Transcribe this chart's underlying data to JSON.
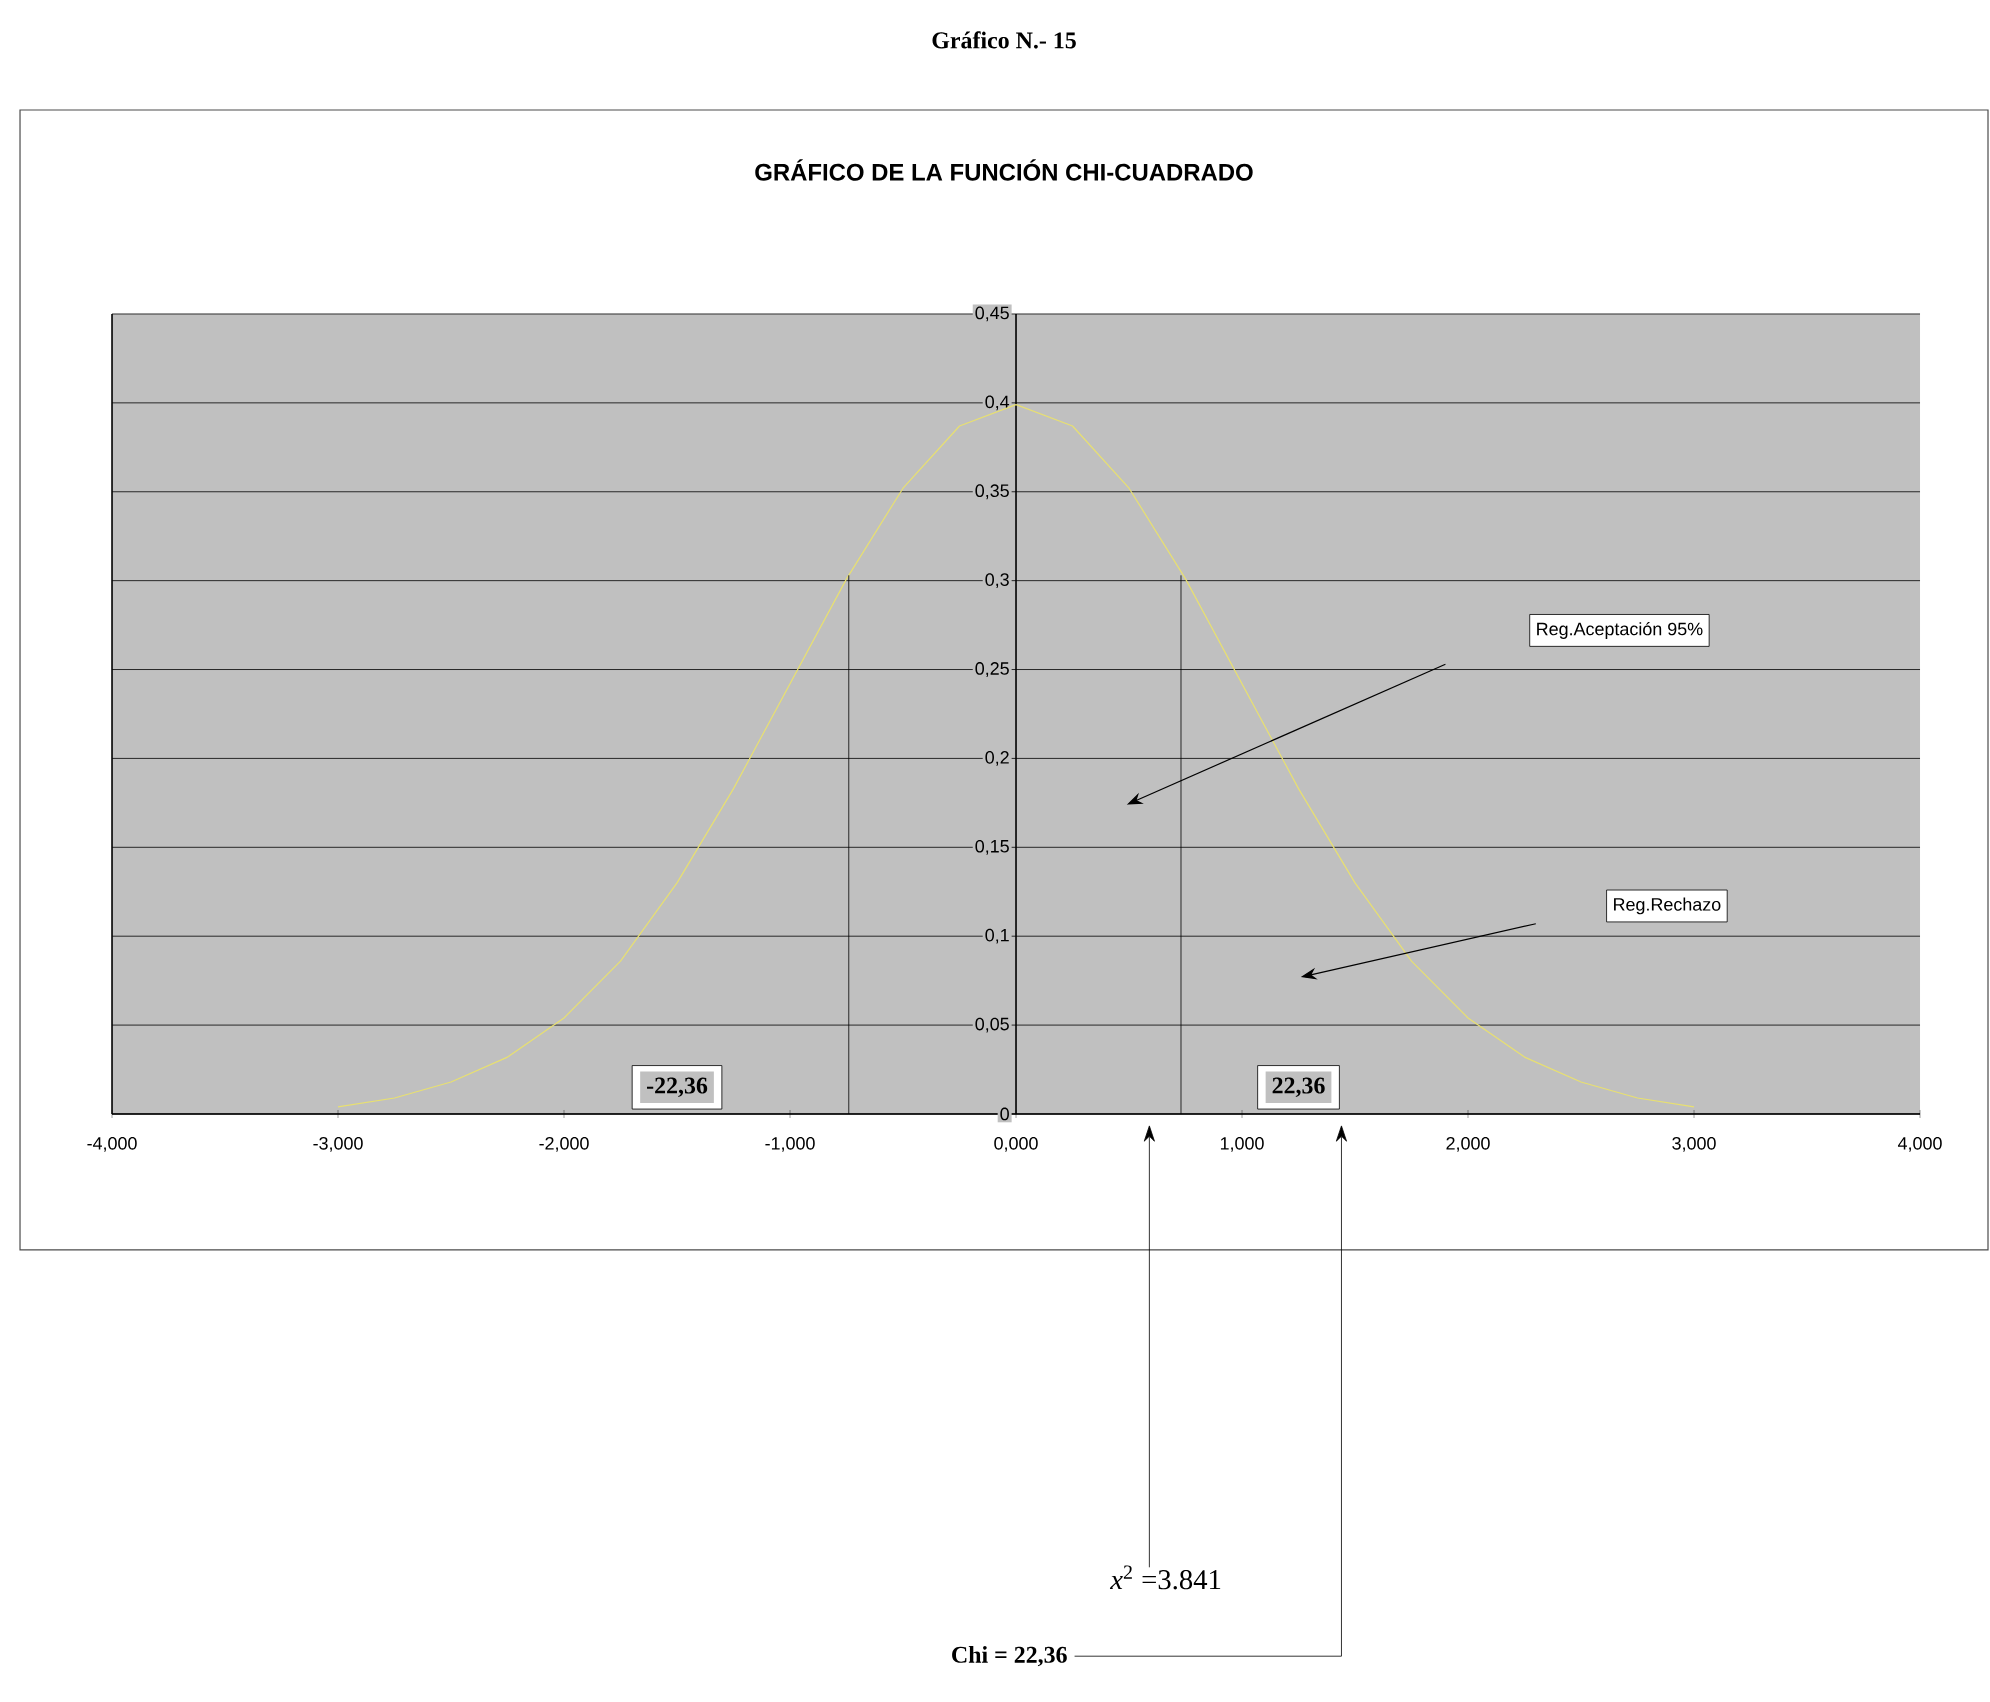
{
  "chart_data": {
    "type": "line",
    "title": "GRÁFICO DE LA FUNCIÓN CHI-CUADRADO",
    "xlim": [
      -4,
      4
    ],
    "ylim": [
      0,
      0.45
    ],
    "xticks": [
      {
        "value": -4,
        "label": "-4,000"
      },
      {
        "value": -3,
        "label": "-3,000"
      },
      {
        "value": -2,
        "label": "-2,000"
      },
      {
        "value": -1,
        "label": "-1,000"
      },
      {
        "value": 0,
        "label": "0,000"
      },
      {
        "value": 1,
        "label": "1,000"
      },
      {
        "value": 2,
        "label": "2,000"
      },
      {
        "value": 3,
        "label": "3,000"
      },
      {
        "value": 4,
        "label": "4,000"
      }
    ],
    "yticks": [
      0,
      {
        "value": 0.05,
        "label": "0,05"
      },
      {
        "value": 0.1,
        "label": "0,1"
      },
      {
        "value": 0.15,
        "label": "0,15"
      },
      {
        "value": 0.2,
        "label": "0,2"
      },
      {
        "value": 0.25,
        "label": "0,25"
      },
      {
        "value": 0.3,
        "label": "0,3"
      },
      {
        "value": 0.35,
        "label": "0,35"
      },
      {
        "value": 0.4,
        "label": "0,4"
      },
      {
        "value": 0.45,
        "label": "0,45"
      }
    ],
    "grid": "y",
    "series": [
      {
        "color": "#e8e070",
        "x": [
          -3,
          -2.75,
          -2.5,
          -2.25,
          -2,
          -1.75,
          -1.5,
          -1.25,
          -1,
          -0.75,
          -0.5,
          -0.25,
          0,
          0.25,
          0.5,
          0.75,
          1,
          1.25,
          1.5,
          1.75,
          2,
          2.25,
          2.5,
          2.75,
          3
        ],
        "values": [
          0.004,
          0.009,
          0.018,
          0.032,
          0.054,
          0.086,
          0.13,
          0.183,
          0.242,
          0.301,
          0.352,
          0.387,
          0.399,
          0.387,
          0.352,
          0.301,
          0.242,
          0.183,
          0.13,
          0.086,
          0.054,
          0.032,
          0.018,
          0.009,
          0.004
        ]
      },
      {
        "color": "#000000",
        "x": [
          -0.74,
          -0.74
        ],
        "values": [
          0,
          0.303
        ]
      },
      {
        "color": "#000000",
        "x": [
          0.73,
          0.73
        ],
        "values": [
          0,
          0.303
        ]
      }
    ],
    "annotations": [
      "Gráfico N.- 15",
      "Reg.Aceptación 95%",
      "Reg.Rechazo",
      {
        "text": "-22,36",
        "x": -1.5,
        "y": 0.015
      },
      {
        "text": "22,36",
        "x": 1.25,
        "y": 0.015
      },
      "*x*$^{2}$ =3.841",
      "Chi = 22,36"
    ]
  }
}
